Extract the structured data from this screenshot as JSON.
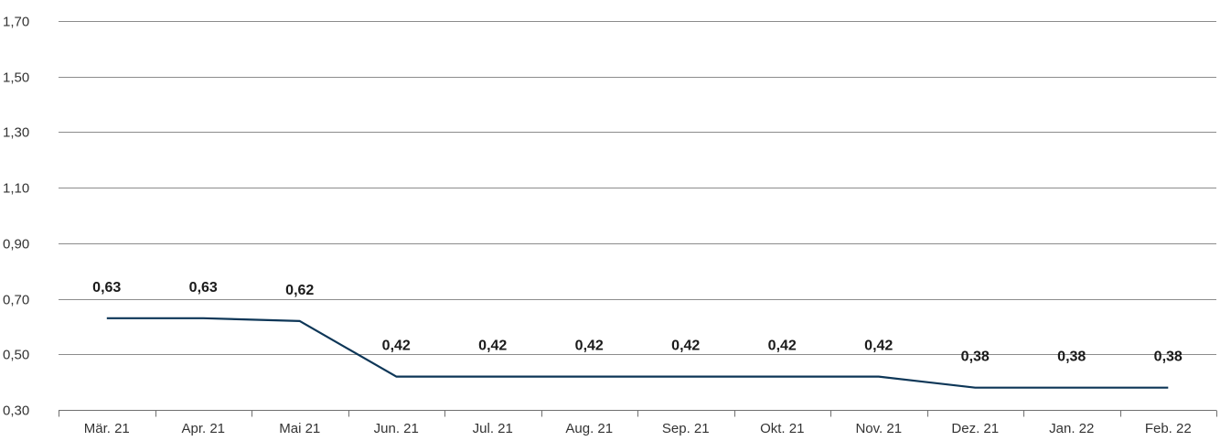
{
  "chart_data": {
    "type": "line",
    "categories": [
      "Mär. 21",
      "Apr. 21",
      "Mai 21",
      "Jun. 21",
      "Jul. 21",
      "Aug. 21",
      "Sep. 21",
      "Okt. 21",
      "Nov. 21",
      "Dez. 21",
      "Jan. 22",
      "Feb. 22"
    ],
    "series": [
      {
        "values": [
          0.63,
          0.63,
          0.62,
          0.42,
          0.42,
          0.42,
          0.42,
          0.42,
          0.42,
          0.38,
          0.38,
          0.38
        ],
        "data_labels": [
          "0,63",
          "0,63",
          "0,62",
          "0,42",
          "0,42",
          "0,42",
          "0,42",
          "0,42",
          "0,42",
          "0,38",
          "0,38",
          "0,38"
        ],
        "color": "#0d3657"
      }
    ],
    "yticks": [
      0.3,
      0.5,
      0.7,
      0.9,
      1.1,
      1.3,
      1.5,
      1.7
    ],
    "ytick_labels": [
      "0,30",
      "0,50",
      "0,70",
      "0,90",
      "1,10",
      "1,30",
      "1,50",
      "1,70"
    ],
    "ylim": [
      0.3,
      1.7
    ],
    "grid": true,
    "legend": "none",
    "title": "",
    "xlabel": "",
    "ylabel": ""
  }
}
